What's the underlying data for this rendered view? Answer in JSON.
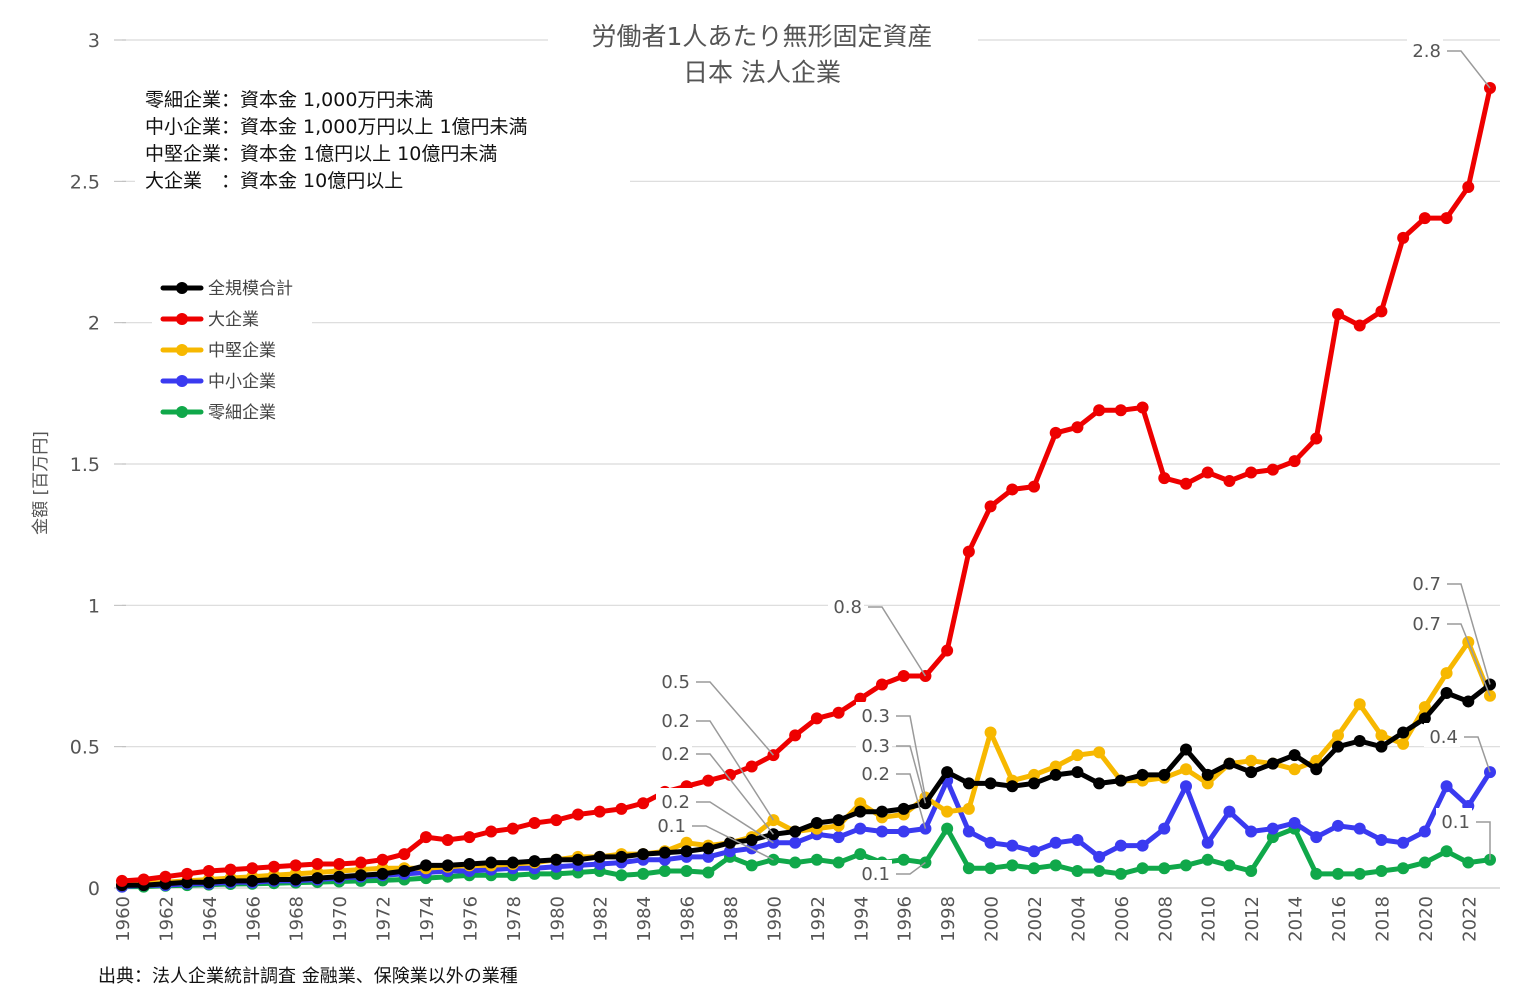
{
  "chart_data": {
    "type": "line",
    "title": "労働者1人あたり無形固定資産",
    "subtitle": "日本 法人企業",
    "notes": [
      "零細企業：資本金 1,000万円未満",
      "中小企業：資本金 1,000万円以上 1億円未満",
      "中堅企業：資本金 1億円以上 10億円未満",
      "大企業　：資本金 10億円以上"
    ],
    "ylabel": "金額 [百万円]",
    "xlabel": "",
    "source": "出典：法人企業統計調査 金融業、保険業以外の業種",
    "ylim": [
      0,
      3
    ],
    "yticks": [
      "0",
      "0.5",
      "1",
      "1.5",
      "2",
      "2.5",
      "3"
    ],
    "xticks": [
      "1960",
      "1962",
      "1964",
      "1966",
      "1968",
      "1970",
      "1972",
      "1974",
      "1976",
      "1978",
      "1980",
      "1982",
      "1984",
      "1986",
      "1988",
      "1990",
      "1992",
      "1994",
      "1996",
      "1998",
      "2000",
      "2002",
      "2004",
      "2006",
      "2008",
      "2010",
      "2012",
      "2014",
      "2016",
      "2018",
      "2020",
      "2022"
    ],
    "x": [
      1960,
      1961,
      1962,
      1963,
      1964,
      1965,
      1966,
      1967,
      1968,
      1969,
      1970,
      1971,
      1972,
      1973,
      1974,
      1975,
      1976,
      1977,
      1978,
      1979,
      1980,
      1981,
      1982,
      1983,
      1984,
      1985,
      1986,
      1987,
      1988,
      1989,
      1990,
      1991,
      1992,
      1993,
      1994,
      1995,
      1996,
      1997,
      1998,
      1999,
      2000,
      2001,
      2002,
      2003,
      2004,
      2005,
      2006,
      2007,
      2008,
      2009,
      2010,
      2011,
      2012,
      2013,
      2014,
      2015,
      2016,
      2017,
      2018,
      2019,
      2020,
      2021,
      2022,
      2023
    ],
    "grid": true,
    "legend_position": "upper-left",
    "series": [
      {
        "name": "全規模合計",
        "color": "#000000",
        "values": [
          0.01,
          0.01,
          0.015,
          0.02,
          0.02,
          0.025,
          0.025,
          0.03,
          0.03,
          0.035,
          0.04,
          0.045,
          0.05,
          0.06,
          0.08,
          0.08,
          0.085,
          0.09,
          0.09,
          0.095,
          0.1,
          0.1,
          0.11,
          0.11,
          0.12,
          0.125,
          0.13,
          0.14,
          0.16,
          0.17,
          0.19,
          0.2,
          0.23,
          0.24,
          0.27,
          0.27,
          0.28,
          0.3,
          0.41,
          0.37,
          0.37,
          0.36,
          0.37,
          0.4,
          0.41,
          0.37,
          0.38,
          0.4,
          0.4,
          0.49,
          0.4,
          0.44,
          0.41,
          0.44,
          0.47,
          0.42,
          0.5,
          0.52,
          0.5,
          0.55,
          0.6,
          0.69,
          0.66,
          0.72
        ]
      },
      {
        "name": "大企業",
        "color": "#ee0000",
        "values": [
          0.025,
          0.03,
          0.04,
          0.05,
          0.06,
          0.065,
          0.07,
          0.075,
          0.08,
          0.085,
          0.085,
          0.09,
          0.1,
          0.12,
          0.18,
          0.17,
          0.18,
          0.2,
          0.21,
          0.23,
          0.24,
          0.26,
          0.27,
          0.28,
          0.3,
          0.34,
          0.36,
          0.38,
          0.4,
          0.43,
          0.47,
          0.54,
          0.6,
          0.62,
          0.67,
          0.72,
          0.75,
          0.75,
          0.84,
          1.19,
          1.35,
          1.41,
          1.42,
          1.61,
          1.63,
          1.69,
          1.69,
          1.7,
          1.45,
          1.43,
          1.47,
          1.44,
          1.47,
          1.48,
          1.51,
          1.59,
          2.03,
          1.99,
          2.04,
          2.3,
          2.37,
          2.37,
          2.48,
          2.83
        ]
      },
      {
        "name": "中堅企業",
        "color": "#f7b800",
        "values": [
          0.01,
          0.015,
          0.02,
          0.025,
          0.03,
          0.035,
          0.04,
          0.045,
          0.05,
          0.055,
          0.06,
          0.065,
          0.07,
          0.07,
          0.07,
          0.075,
          0.08,
          0.08,
          0.085,
          0.09,
          0.1,
          0.11,
          0.11,
          0.12,
          0.12,
          0.13,
          0.16,
          0.15,
          0.16,
          0.18,
          0.24,
          0.2,
          0.21,
          0.22,
          0.3,
          0.25,
          0.26,
          0.32,
          0.27,
          0.28,
          0.55,
          0.38,
          0.4,
          0.43,
          0.47,
          0.48,
          0.38,
          0.38,
          0.39,
          0.42,
          0.37,
          0.44,
          0.45,
          0.44,
          0.42,
          0.45,
          0.54,
          0.65,
          0.54,
          0.51,
          0.64,
          0.76,
          0.87,
          0.68
        ]
      },
      {
        "name": "中小企業",
        "color": "#3a3af0",
        "values": [
          0.005,
          0.01,
          0.01,
          0.015,
          0.015,
          0.02,
          0.02,
          0.025,
          0.025,
          0.03,
          0.035,
          0.04,
          0.045,
          0.05,
          0.055,
          0.06,
          0.06,
          0.065,
          0.07,
          0.07,
          0.075,
          0.08,
          0.085,
          0.09,
          0.1,
          0.1,
          0.11,
          0.11,
          0.13,
          0.14,
          0.16,
          0.16,
          0.19,
          0.18,
          0.21,
          0.2,
          0.2,
          0.21,
          0.38,
          0.2,
          0.16,
          0.15,
          0.13,
          0.16,
          0.17,
          0.11,
          0.15,
          0.15,
          0.21,
          0.36,
          0.16,
          0.27,
          0.2,
          0.21,
          0.23,
          0.18,
          0.22,
          0.21,
          0.17,
          0.16,
          0.2,
          0.36,
          0.29,
          0.41
        ]
      },
      {
        "name": "零細企業",
        "color": "#10a84a",
        "values": [
          0.005,
          0.005,
          0.008,
          0.01,
          0.012,
          0.014,
          0.015,
          0.017,
          0.019,
          0.021,
          0.023,
          0.025,
          0.027,
          0.03,
          0.035,
          0.04,
          0.045,
          0.045,
          0.045,
          0.05,
          0.05,
          0.055,
          0.06,
          0.045,
          0.05,
          0.06,
          0.06,
          0.055,
          0.11,
          0.08,
          0.1,
          0.09,
          0.1,
          0.09,
          0.12,
          0.09,
          0.1,
          0.09,
          0.21,
          0.07,
          0.07,
          0.08,
          0.07,
          0.08,
          0.06,
          0.06,
          0.05,
          0.07,
          0.07,
          0.08,
          0.1,
          0.08,
          0.06,
          0.18,
          0.21,
          0.05,
          0.05,
          0.05,
          0.06,
          0.07,
          0.09,
          0.13,
          0.09,
          0.1
        ]
      }
    ],
    "annotations": [
      {
        "text": "2.8",
        "series": "大企業",
        "x": 2023
      },
      {
        "text": "0.8",
        "series": "大企業",
        "x": 1997
      },
      {
        "text": "0.5",
        "series": "大企業",
        "x": 1990
      },
      {
        "text": "0.2",
        "series": "中堅企業",
        "x": 1990
      },
      {
        "text": "0.2",
        "series": "全規模合計",
        "x": 1990
      },
      {
        "text": "0.2",
        "series": "中小企業",
        "x": 1990
      },
      {
        "text": "0.1",
        "series": "零細企業",
        "x": 1990
      },
      {
        "text": "0.3",
        "series": "中堅企業",
        "x": 1997
      },
      {
        "text": "0.3",
        "series": "全規模合計",
        "x": 1997
      },
      {
        "text": "0.2",
        "series": "中小企業",
        "x": 1997
      },
      {
        "text": "0.1",
        "series": "零細企業",
        "x": 1997
      },
      {
        "text": "0.7",
        "series": "全規模合計",
        "x": 2023
      },
      {
        "text": "0.7",
        "series": "中堅企業",
        "x": 2023
      },
      {
        "text": "0.4",
        "series": "中小企業",
        "x": 2023
      },
      {
        "text": "0.1",
        "series": "零細企業",
        "x": 2023
      }
    ]
  }
}
